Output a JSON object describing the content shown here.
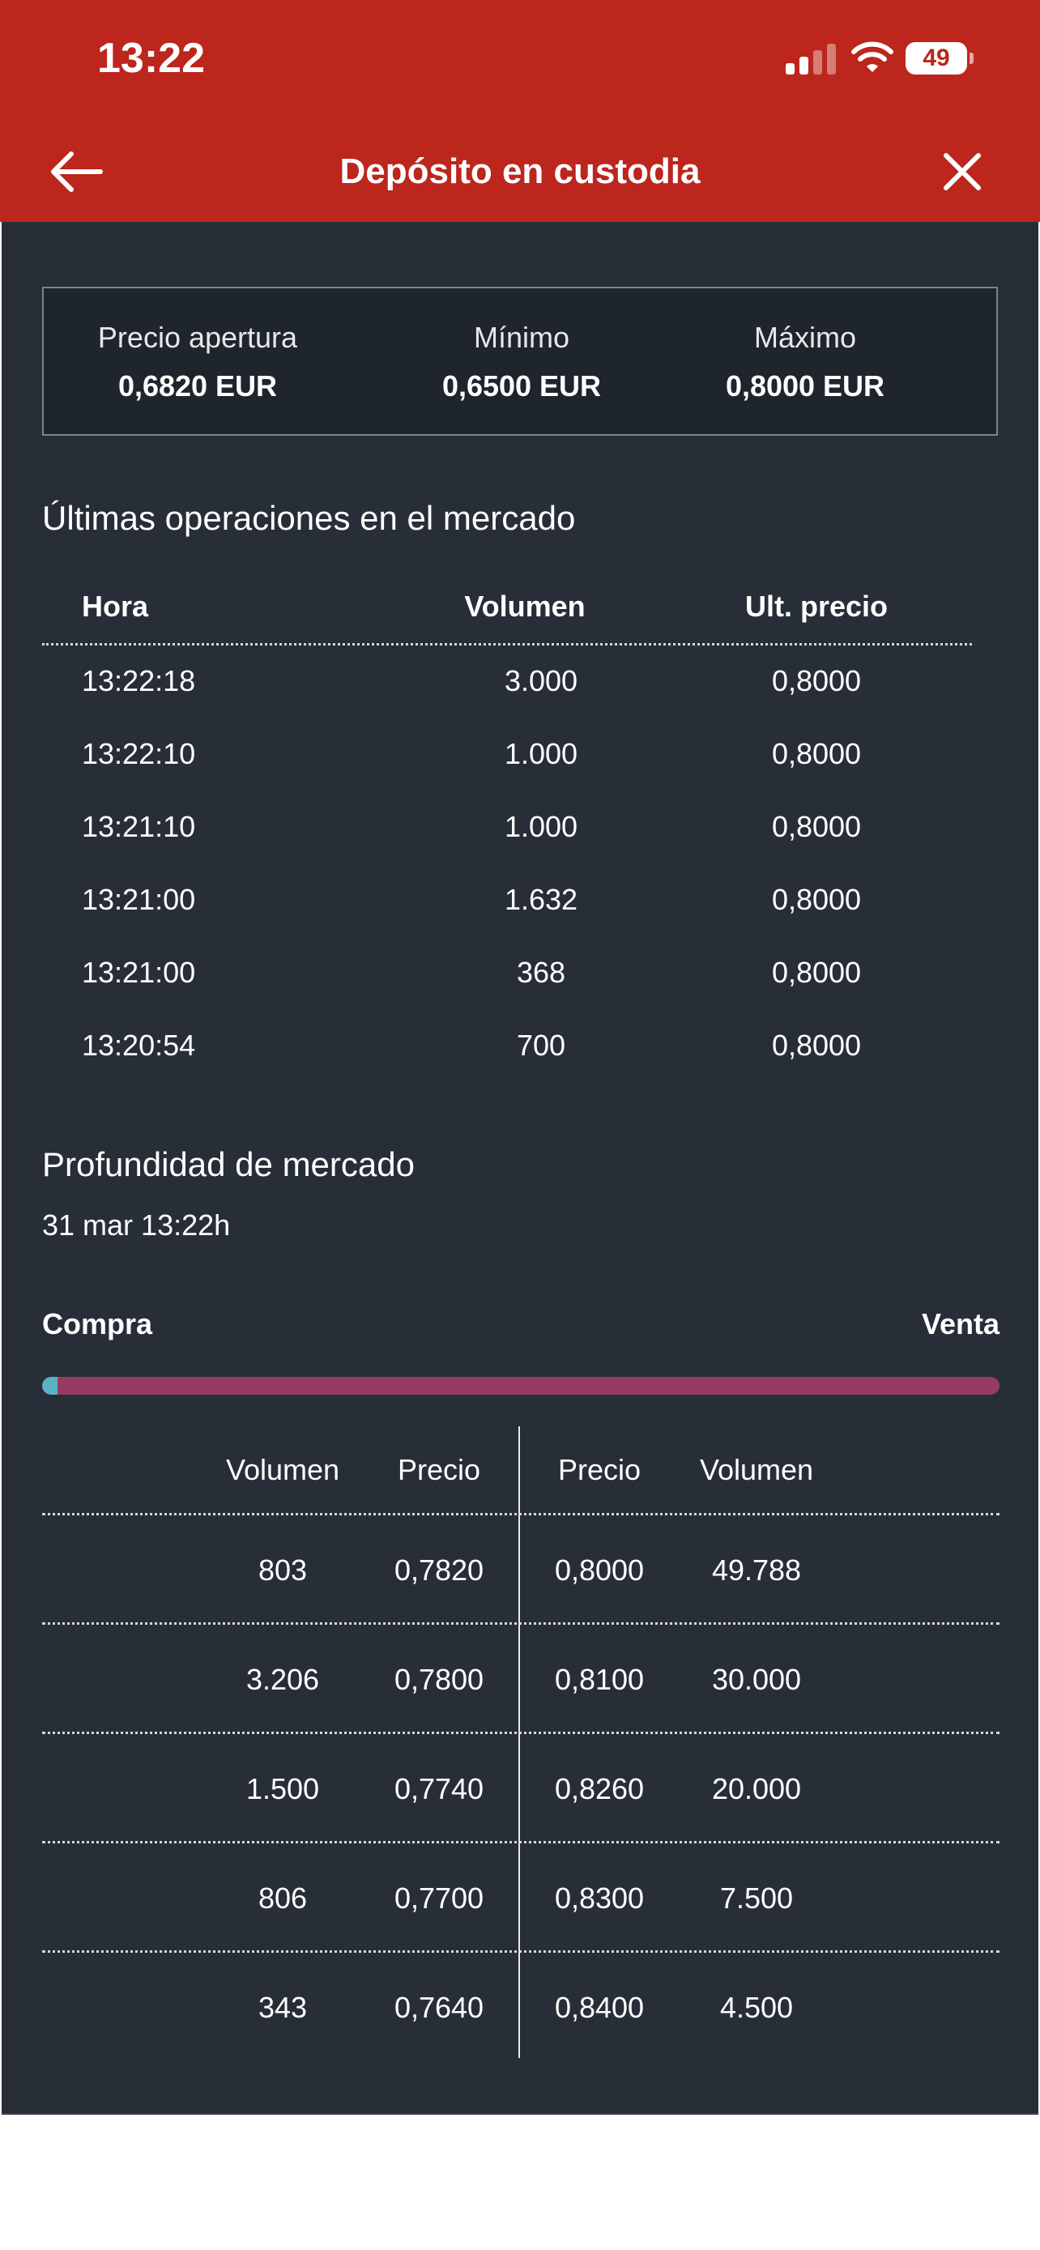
{
  "status_bar": {
    "time": "13:22",
    "battery": "49"
  },
  "header": {
    "title": "Depósito en custodia",
    "back_icon": "arrow-left-icon",
    "close_icon": "close-icon"
  },
  "summary": {
    "items": [
      {
        "label": "Precio apertura",
        "value": "0,6820 EUR"
      },
      {
        "label": "Mínimo",
        "value": "0,6500 EUR"
      },
      {
        "label": "Máximo",
        "value": "0,8000 EUR"
      }
    ]
  },
  "trades": {
    "title": "Últimas operaciones en el mercado",
    "headers": [
      "Hora",
      "Volumen",
      "Ult. precio"
    ],
    "rows": [
      [
        "13:22:18",
        "3.000",
        "0,8000"
      ],
      [
        "13:22:10",
        "1.000",
        "0,8000"
      ],
      [
        "13:21:10",
        "1.000",
        "0,8000"
      ],
      [
        "13:21:00",
        "1.632",
        "0,8000"
      ],
      [
        "13:21:00",
        "368",
        "0,8000"
      ],
      [
        "13:20:54",
        "700",
        "0,8000"
      ]
    ]
  },
  "depth": {
    "title": "Profundidad de mercado",
    "timestamp": "31 mar 13:22h",
    "buy_label": "Compra",
    "sell_label": "Venta",
    "buy_share": 0.016,
    "colors": {
      "buy": "#5ab3c2",
      "sell": "#963c63"
    },
    "headers": [
      "Volumen",
      "Precio",
      "Precio",
      "Volumen"
    ],
    "rows": [
      [
        "803",
        "0,7820",
        "0,8000",
        "49.788"
      ],
      [
        "3.206",
        "0,7800",
        "0,8100",
        "30.000"
      ],
      [
        "1.500",
        "0,7740",
        "0,8260",
        "20.000"
      ],
      [
        "806",
        "0,7700",
        "0,8300",
        "7.500"
      ],
      [
        "343",
        "0,7640",
        "0,8400",
        "4.500"
      ]
    ]
  },
  "colors": {
    "brand": "#bc261d",
    "background": "#272e38"
  }
}
